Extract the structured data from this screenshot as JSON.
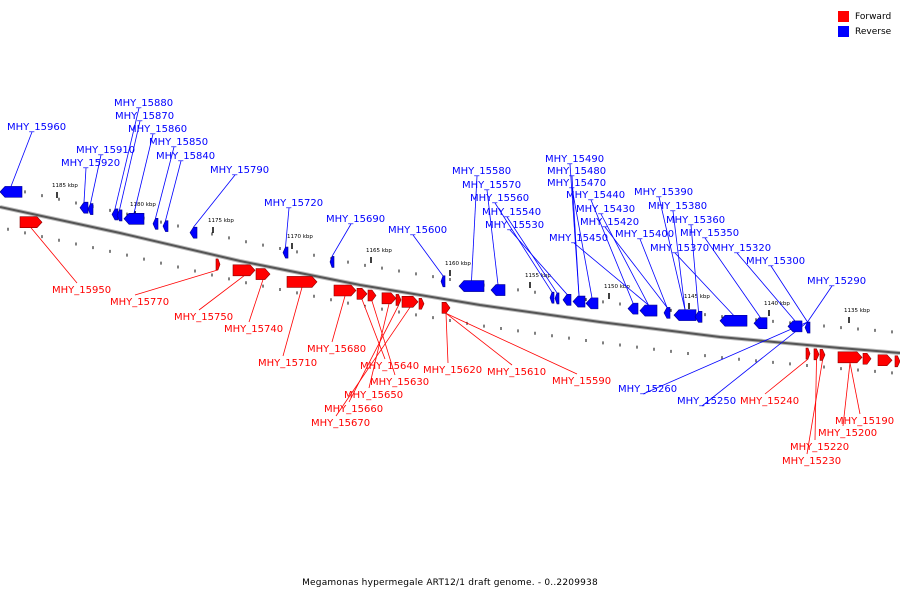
{
  "legend": {
    "forward_label": "Forward",
    "forward_color": "#ff0000",
    "reverse_label": "Reverse",
    "reverse_color": "#0000ff"
  },
  "caption": "Megamonas hypermegale ART12/1 draft genome. - 0..2209938",
  "scale_labels": [
    "1185 kbp",
    "1180 kbp",
    "1175 kbp",
    "1170 kbp",
    "1165 kbp",
    "1160 kbp",
    "1155 kbp",
    "1150 kbp",
    "1145 kbp",
    "1140 kbp",
    "1135 kbp"
  ],
  "genes": {
    "reverse": [
      "MHY_15960",
      "MHY_15920",
      "MHY_15910",
      "MHY_15880",
      "MHY_15870",
      "MHY_15860",
      "MHY_15850",
      "MHY_15840",
      "MHY_15790",
      "MHY_15720",
      "MHY_15690",
      "MHY_15600",
      "MHY_15580",
      "MHY_15570",
      "MHY_15560",
      "MHY_15540",
      "MHY_15530",
      "MHY_15490",
      "MHY_15480",
      "MHY_15470",
      "MHY_15440",
      "MHY_15430",
      "MHY_15420",
      "MHY_15450",
      "MHY_15400",
      "MHY_15390",
      "MHY_15380",
      "MHY_15360",
      "MHY_15370",
      "MHY_15350",
      "MHY_15320",
      "MHY_15300",
      "MHY_15290",
      "MHY_15260",
      "MHY_15250"
    ],
    "forward": [
      "MHY_15950",
      "MHY_15770",
      "MHY_15750",
      "MHY_15740",
      "MHY_15710",
      "MHY_15680",
      "MHY_15640",
      "MHY_15630",
      "MHY_15650",
      "MHY_15660",
      "MHY_15670",
      "MHY_15620",
      "MHY_15610",
      "MHY_15590",
      "MHY_15240",
      "MHY_15190",
      "MHY_15200",
      "MHY_15220",
      "MHY_15230"
    ]
  }
}
